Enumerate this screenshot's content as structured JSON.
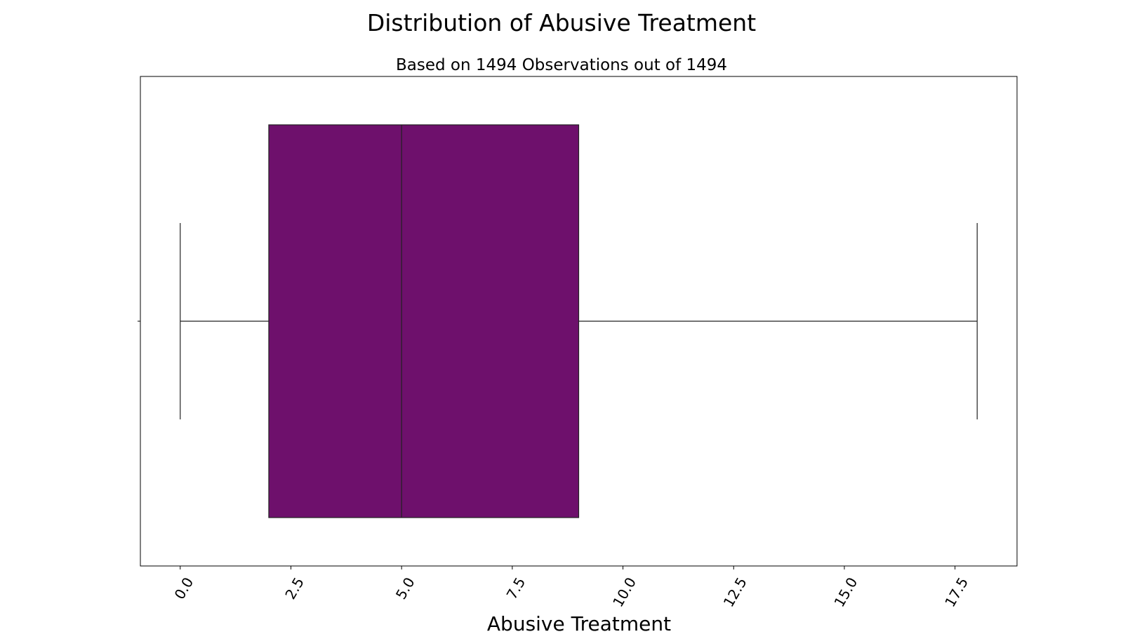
{
  "chart_data": {
    "type": "boxplot",
    "title": "Distribution of Abusive Treatment",
    "subtitle": "Based on 1494 Observations out of 1494",
    "xlabel": "Abusive Treatment",
    "ylabel": "",
    "orientation": "horizontal",
    "xlim": [
      -0.9,
      18.9
    ],
    "x_ticks": [
      0.0,
      2.5,
      5.0,
      7.5,
      10.0,
      12.5,
      15.0,
      17.5
    ],
    "x_tick_labels": [
      "0.0",
      "2.5",
      "5.0",
      "7.5",
      "10.0",
      "12.5",
      "15.0",
      "17.5"
    ],
    "tick_label_rotation_deg": 60,
    "grid": false,
    "legend": "none",
    "box": {
      "whisker_low": 0.0,
      "q1": 2.0,
      "median": 5.0,
      "q3": 9.0,
      "whisker_high": 18.0,
      "fill_color": "#6e106c",
      "line_color": "#222222"
    }
  }
}
